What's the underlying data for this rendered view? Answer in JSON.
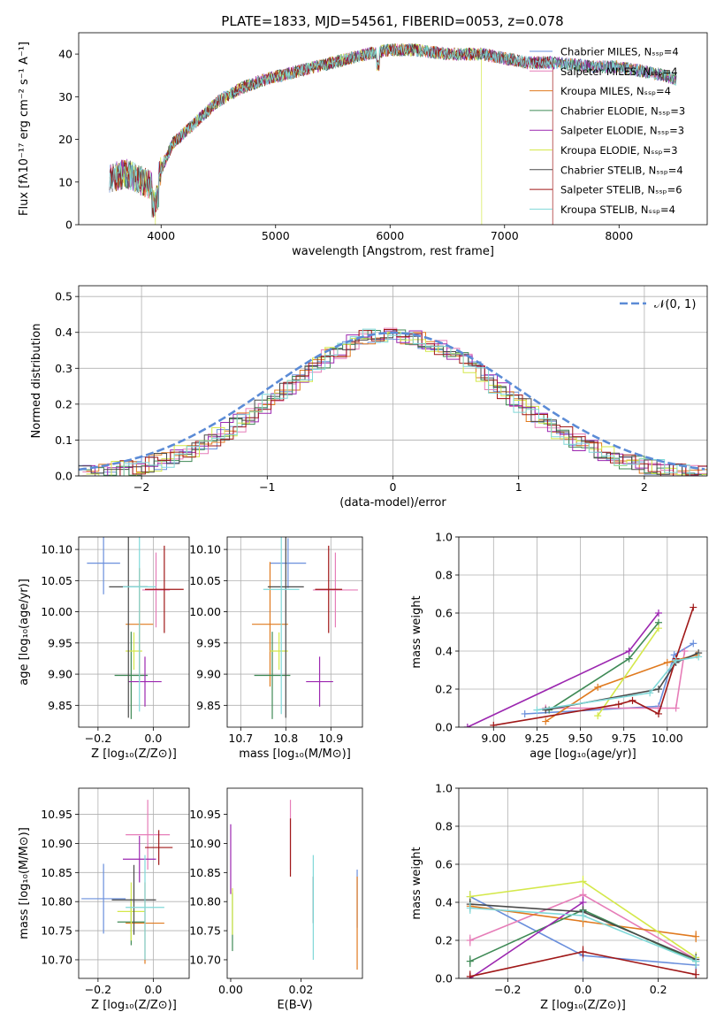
{
  "figure_title": "PLATE=1833, MJD=54561, FIBERID=0053, z=0.078",
  "colors": {
    "Chabrier MILES": "#6a8fdc",
    "Salpeter MILES": "#e67db8",
    "Kroupa MILES": "#e07a1f",
    "Chabrier ELODIE": "#3f8a56",
    "Salpeter ELODIE": "#9c27b0",
    "Kroupa ELODIE": "#d4e84a",
    "Chabrier STELIB": "#4a4a4a",
    "Salpeter STELIB": "#a01818",
    "Kroupa STELIB": "#7fd8d8",
    "normal_curve": "#5b8bd6",
    "grid": "#b0b0b0"
  },
  "chart_data": [
    {
      "id": "spectrum",
      "type": "line",
      "xlabel": "wavelength [Angstrom, rest frame]",
      "ylabel": "Flux [fλ10⁻¹⁷ erg cm⁻² s⁻¹ A⁻¹]",
      "xlim": [
        3280,
        8770
      ],
      "ylim": [
        0,
        45
      ],
      "xticks": [
        4000,
        5000,
        6000,
        7000,
        8000
      ],
      "yticks": [
        0,
        10,
        20,
        30,
        40
      ],
      "grid": false,
      "legend_position": "top-right",
      "continuum": {
        "x": [
          3550,
          3700,
          3850,
          3950,
          4000,
          4100,
          4300,
          4500,
          4700,
          4900,
          5200,
          5500,
          5800,
          6000,
          6200,
          6500,
          6800,
          7000,
          7200,
          7400,
          7600,
          7800,
          8000,
          8200,
          8400,
          8500
        ],
        "y": [
          11,
          12,
          10,
          9,
          13,
          19,
          24,
          29,
          32,
          34,
          36,
          38,
          40,
          41,
          41,
          40,
          40,
          39,
          38,
          38,
          37.5,
          37,
          37,
          36,
          35,
          34
        ]
      },
      "legend": [
        "Chabrier MILES, Nₛₛₚ=4",
        "Salpeter MILES, Nₛₛₚ=4",
        "Kroupa MILES, Nₛₛₚ=4",
        "Chabrier ELODIE, Nₛₛₚ=3",
        "Salpeter ELODIE, Nₛₛₚ=3",
        "Kroupa ELODIE, Nₛₛₚ=3",
        "Chabrier STELIB, Nₛₛₚ=4",
        "Salpeter STELIB, Nₛₛₚ=6",
        "Kroupa STELIB, Nₛₛₚ=4"
      ]
    },
    {
      "id": "residuals",
      "type": "line",
      "xlabel": "(data-model)/error",
      "ylabel": "Normed distribution",
      "xlim": [
        -2.5,
        2.5
      ],
      "ylim": [
        0,
        0.53
      ],
      "xticks": [
        -2,
        -1,
        0,
        1,
        2
      ],
      "yticks": [
        0.0,
        0.1,
        0.2,
        0.3,
        0.4,
        0.5
      ],
      "grid": true,
      "legend": [
        "𝒩(0, 1)"
      ],
      "legend_position": "top-right",
      "bin_width": 0.1
    },
    {
      "id": "age_vs_Z",
      "type": "scatter",
      "xlabel": "Z [log₁₀(Z/Z⊙)]",
      "ylabel": "age  [log₁₀(age/yr)]",
      "xlim": [
        -0.27,
        0.13
      ],
      "ylim": [
        9.815,
        10.12
      ],
      "xticks": [
        -0.2,
        0.0
      ],
      "yticks": [
        9.85,
        9.9,
        9.95,
        10.0,
        10.05,
        10.1
      ],
      "grid": true,
      "points": [
        {
          "model": "Chabrier MILES",
          "x": -0.18,
          "xerr": 0.06,
          "y": 10.078,
          "yerr": 0.05
        },
        {
          "model": "Salpeter MILES",
          "x": 0.01,
          "xerr": 0.05,
          "y": 10.035,
          "yerr": 0.06
        },
        {
          "model": "Kroupa MILES",
          "x": -0.05,
          "xerr": 0.05,
          "y": 9.98,
          "yerr": 0.09
        },
        {
          "model": "Chabrier ELODIE",
          "x": -0.08,
          "xerr": 0.06,
          "y": 9.898,
          "yerr": 0.07
        },
        {
          "model": "Salpeter ELODIE",
          "x": -0.03,
          "xerr": 0.06,
          "y": 9.888,
          "yerr": 0.04
        },
        {
          "model": "Kroupa ELODIE",
          "x": -0.07,
          "xerr": 0.03,
          "y": 9.937,
          "yerr": 0.03
        },
        {
          "model": "Chabrier STELIB",
          "x": -0.09,
          "xerr": 0.07,
          "y": 10.04,
          "yerr": 0.21
        },
        {
          "model": "Salpeter STELIB",
          "x": 0.04,
          "xerr": 0.07,
          "y": 10.036,
          "yerr": 0.07
        },
        {
          "model": "Kroupa STELIB",
          "x": -0.05,
          "xerr": 0.06,
          "y": 10.04,
          "yerr": 0.2
        }
      ]
    },
    {
      "id": "age_vs_mass",
      "type": "scatter",
      "xlabel": "mass [log₁₀(M/M⊙)]",
      "ylabel": "",
      "xlim": [
        10.67,
        10.97
      ],
      "ylim": [
        9.815,
        10.12
      ],
      "xticks": [
        10.7,
        10.8,
        10.9
      ],
      "yticks": [
        9.85,
        9.9,
        9.95,
        10.0,
        10.05,
        10.1
      ],
      "grid": true,
      "points": [
        {
          "model": "Chabrier MILES",
          "x": 10.805,
          "xerr": 0.04,
          "y": 10.078,
          "yerr": 0.04
        },
        {
          "model": "Salpeter MILES",
          "x": 10.91,
          "xerr": 0.05,
          "y": 10.035,
          "yerr": 0.06
        },
        {
          "model": "Kroupa MILES",
          "x": 10.765,
          "xerr": 0.04,
          "y": 9.98,
          "yerr": 0.1
        },
        {
          "model": "Chabrier ELODIE",
          "x": 10.77,
          "xerr": 0.04,
          "y": 9.898,
          "yerr": 0.07
        },
        {
          "model": "Salpeter ELODIE",
          "x": 10.875,
          "xerr": 0.03,
          "y": 9.888,
          "yerr": 0.04
        },
        {
          "model": "Kroupa ELODIE",
          "x": 10.785,
          "xerr": 0.02,
          "y": 9.937,
          "yerr": 0.03
        },
        {
          "model": "Chabrier STELIB",
          "x": 10.8,
          "xerr": 0.04,
          "y": 10.04,
          "yerr": 0.21
        },
        {
          "model": "Salpeter STELIB",
          "x": 10.895,
          "xerr": 0.03,
          "y": 10.036,
          "yerr": 0.07
        },
        {
          "model": "Kroupa STELIB",
          "x": 10.79,
          "xerr": 0.04,
          "y": 10.036,
          "yerr": 0.2
        }
      ]
    },
    {
      "id": "mass_weight_vs_age",
      "type": "line",
      "xlabel": "age  [log₁₀(age/yr)]",
      "ylabel": "mass weight",
      "xlim": [
        8.8,
        10.23
      ],
      "ylim": [
        0,
        1
      ],
      "xticks": [
        9.0,
        9.25,
        9.5,
        9.75,
        10.0
      ],
      "xticklabels": [
        "9.00",
        "9.25",
        "9.50",
        "9.75",
        "10.00"
      ],
      "yticks": [
        0.0,
        0.2,
        0.4,
        0.6,
        0.8,
        1.0
      ],
      "grid": true,
      "series": [
        {
          "model": "Chabrier MILES",
          "x": [
            9.18,
            9.95,
            10.04,
            10.15
          ],
          "y": [
            0.07,
            0.11,
            0.38,
            0.44
          ]
        },
        {
          "model": "Salpeter MILES",
          "x": [
            9.3,
            9.95,
            10.05,
            10.1
          ],
          "y": [
            0.1,
            0.1,
            0.1,
            0.4
          ]
        },
        {
          "model": "Kroupa MILES",
          "x": [
            9.3,
            9.6,
            10.0,
            10.17
          ],
          "y": [
            0.03,
            0.21,
            0.34,
            0.38
          ]
        },
        {
          "model": "Chabrier ELODIE",
          "x": [
            9.32,
            9.78,
            9.95
          ],
          "y": [
            0.09,
            0.36,
            0.55
          ]
        },
        {
          "model": "Salpeter ELODIE",
          "x": [
            8.85,
            9.78,
            9.95
          ],
          "y": [
            0.0,
            0.4,
            0.6
          ]
        },
        {
          "model": "Kroupa ELODIE",
          "x": [
            9.6,
            9.95
          ],
          "y": [
            0.06,
            0.52
          ]
        },
        {
          "model": "Chabrier STELIB",
          "x": [
            9.3,
            9.95,
            10.05,
            10.18
          ],
          "y": [
            0.09,
            0.2,
            0.34,
            0.39
          ]
        },
        {
          "model": "Salpeter STELIB",
          "x": [
            9.0,
            9.72,
            9.8,
            9.95,
            10.05,
            10.15
          ],
          "y": [
            0.01,
            0.12,
            0.14,
            0.07,
            0.36,
            0.63
          ]
        },
        {
          "model": "Kroupa STELIB",
          "x": [
            9.25,
            9.9,
            10.05,
            10.18
          ],
          "y": [
            0.09,
            0.18,
            0.35,
            0.37
          ]
        }
      ]
    },
    {
      "id": "mass_vs_Z",
      "type": "scatter",
      "xlabel": "Z [log₁₀(Z/Z⊙)]",
      "ylabel": "mass [log₁₀(M/M⊙)]",
      "xlim": [
        -0.27,
        0.13
      ],
      "ylim": [
        10.668,
        10.995
      ],
      "xticks": [
        -0.2,
        0.0
      ],
      "yticks": [
        10.7,
        10.75,
        10.8,
        10.85,
        10.9,
        10.95
      ],
      "grid": true,
      "points": [
        {
          "model": "Chabrier MILES",
          "x": -0.18,
          "xerr": 0.08,
          "y": 10.805,
          "yerr": 0.06
        },
        {
          "model": "Salpeter MILES",
          "x": -0.02,
          "xerr": 0.08,
          "y": 10.915,
          "yerr": 0.06
        },
        {
          "model": "Kroupa MILES",
          "x": -0.03,
          "xerr": 0.07,
          "y": 10.763,
          "yerr": 0.07
        },
        {
          "model": "Chabrier ELODIE",
          "x": -0.08,
          "xerr": 0.05,
          "y": 10.765,
          "yerr": 0.04
        },
        {
          "model": "Salpeter ELODIE",
          "x": -0.05,
          "xerr": 0.06,
          "y": 10.873,
          "yerr": 0.04
        },
        {
          "model": "Kroupa ELODIE",
          "x": -0.08,
          "xerr": 0.05,
          "y": 10.783,
          "yerr": 0.05
        },
        {
          "model": "Chabrier STELIB",
          "x": -0.07,
          "xerr": 0.08,
          "y": 10.803,
          "yerr": 0.06
        },
        {
          "model": "Salpeter STELIB",
          "x": 0.02,
          "xerr": 0.05,
          "y": 10.893,
          "yerr": 0.03
        },
        {
          "model": "Kroupa STELIB",
          "x": -0.03,
          "xerr": 0.07,
          "y": 10.79,
          "yerr": 0.09
        }
      ]
    },
    {
      "id": "mass_vs_ebv",
      "type": "scatter",
      "xlabel": "E(B-V)",
      "ylabel": "",
      "xlim": [
        -0.001,
        0.0375
      ],
      "ylim": [
        10.668,
        10.995
      ],
      "xticks": [
        0.0,
        0.02
      ],
      "xticklabels": [
        "0.00",
        "0.02"
      ],
      "yticks": [
        10.7,
        10.75,
        10.8,
        10.85,
        10.9,
        10.95
      ],
      "grid": false,
      "points": [
        {
          "model": "Chabrier MILES",
          "x": 0.036,
          "xerr": 0,
          "y": 10.805,
          "yerr": 0.05
        },
        {
          "model": "Salpeter MILES",
          "x": 0.017,
          "xerr": 0,
          "y": 10.915,
          "yerr": 0.06
        },
        {
          "model": "Kroupa MILES",
          "x": 0.036,
          "xerr": 0,
          "y": 10.763,
          "yerr": 0.08
        },
        {
          "model": "Chabrier ELODIE",
          "x": 0.0005,
          "xerr": 0,
          "y": 10.765,
          "yerr": 0.05
        },
        {
          "model": "Salpeter ELODIE",
          "x": 0.0,
          "xerr": 0,
          "y": 10.873,
          "yerr": 0.06
        },
        {
          "model": "Kroupa ELODIE",
          "x": 0.0005,
          "xerr": 0,
          "y": 10.783,
          "yerr": 0.04
        },
        {
          "model": "Chabrier STELIB",
          "x": 0.0235,
          "xerr": 0,
          "y": 10.803,
          "yerr": 0.04
        },
        {
          "model": "Salpeter STELIB",
          "x": 0.017,
          "xerr": 0,
          "y": 10.893,
          "yerr": 0.05
        },
        {
          "model": "Kroupa STELIB",
          "x": 0.0235,
          "xerr": 0,
          "y": 10.79,
          "yerr": 0.09
        }
      ]
    },
    {
      "id": "mass_weight_vs_Z",
      "type": "line",
      "xlabel": "Z [log₁₀(Z/Z⊙)]",
      "ylabel": "mass weight",
      "xlim": [
        -0.33,
        0.33
      ],
      "ylim": [
        0,
        1
      ],
      "xticks": [
        -0.2,
        0.0,
        0.2
      ],
      "yticks": [
        0.0,
        0.2,
        0.4,
        0.6,
        0.8,
        1.0
      ],
      "grid": true,
      "series": [
        {
          "model": "Chabrier MILES",
          "x": [
            -0.3,
            0.0,
            0.3
          ],
          "y": [
            0.43,
            0.12,
            0.07
          ]
        },
        {
          "model": "Salpeter MILES",
          "x": [
            -0.3,
            0.0,
            0.3
          ],
          "y": [
            0.2,
            0.44,
            0.1
          ]
        },
        {
          "model": "Kroupa MILES",
          "x": [
            -0.3,
            0.0,
            0.3
          ],
          "y": [
            0.38,
            0.3,
            0.22
          ]
        },
        {
          "model": "Chabrier ELODIE",
          "x": [
            -0.3,
            0.0,
            0.3
          ],
          "y": [
            0.09,
            0.36,
            0.09
          ]
        },
        {
          "model": "Salpeter ELODIE",
          "x": [
            -0.3,
            0.0
          ],
          "y": [
            0.0,
            0.4
          ]
        },
        {
          "model": "Kroupa ELODIE",
          "x": [
            -0.3,
            0.0,
            0.3
          ],
          "y": [
            0.43,
            0.51,
            0.11
          ]
        },
        {
          "model": "Chabrier STELIB",
          "x": [
            -0.3,
            0.0,
            0.3
          ],
          "y": [
            0.39,
            0.35,
            0.1
          ]
        },
        {
          "model": "Salpeter STELIB",
          "x": [
            -0.3,
            0.0,
            0.3
          ],
          "y": [
            0.01,
            0.14,
            0.02
          ]
        },
        {
          "model": "Kroupa STELIB",
          "x": [
            -0.3,
            0.0,
            0.3
          ],
          "y": [
            0.37,
            0.33,
            0.09
          ]
        }
      ]
    }
  ]
}
